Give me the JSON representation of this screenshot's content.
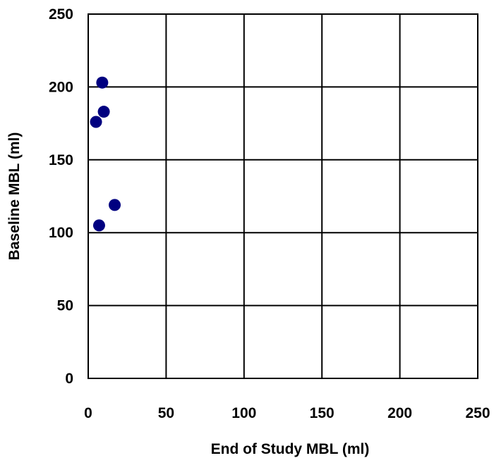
{
  "chart_data": {
    "type": "scatter",
    "title": "",
    "xlabel": "End of Study MBL (ml)",
    "ylabel": "Baseline MBL (ml)",
    "xlim": [
      0,
      250
    ],
    "ylim": [
      0,
      250
    ],
    "xticks": [
      0,
      50,
      100,
      150,
      200,
      250
    ],
    "yticks": [
      0,
      50,
      100,
      150,
      200,
      250
    ],
    "grid": true,
    "legend": "none",
    "marker_color": "#000080",
    "series": [
      {
        "points": [
          {
            "x": 9,
            "y": 203
          },
          {
            "x": 10,
            "y": 183
          },
          {
            "x": 5,
            "y": 176
          },
          {
            "x": 17,
            "y": 119
          },
          {
            "x": 7,
            "y": 105
          }
        ]
      }
    ]
  }
}
